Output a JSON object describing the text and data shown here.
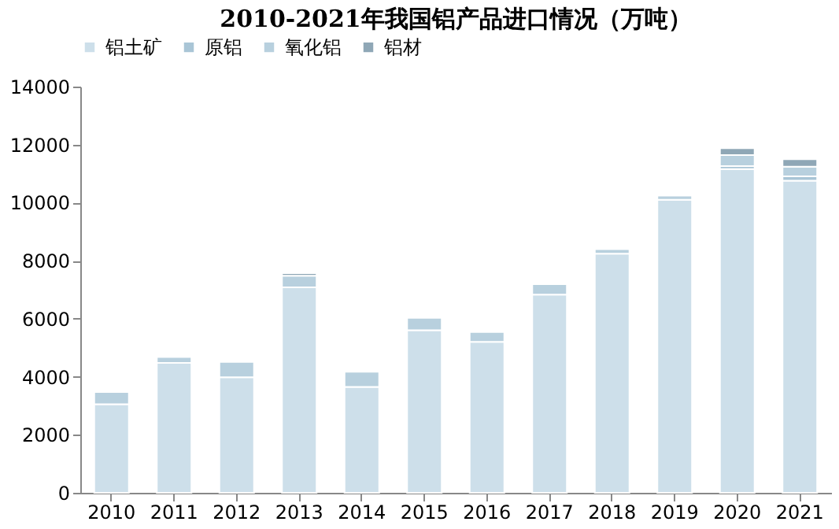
{
  "chart_data": {
    "type": "bar",
    "title": "2010-2021年我国铝产品进口情况（万吨）",
    "stacked": true,
    "categories": [
      "2010",
      "2011",
      "2012",
      "2013",
      "2014",
      "2015",
      "2016",
      "2017",
      "2018",
      "2019",
      "2020",
      "2021"
    ],
    "series": [
      {
        "name": "铝土矿",
        "color": "#cddfea",
        "values": [
          3050,
          4480,
          3980,
          7080,
          3650,
          5600,
          5200,
          6830,
          8240,
          10100,
          11160,
          10760
        ]
      },
      {
        "name": "原铝",
        "color": "#a9c5d6",
        "values": [
          null,
          null,
          null,
          null,
          null,
          null,
          null,
          null,
          null,
          null,
          100,
          150
        ]
      },
      {
        "name": "氧化铝",
        "color": "#b8d0de",
        "values": [
          420,
          200,
          530,
          400,
          520,
          430,
          340,
          360,
          160,
          140,
          380,
          330
        ]
      },
      {
        "name": "铝材",
        "color": "#8fa7b6",
        "values": [
          null,
          null,
          null,
          90,
          null,
          null,
          null,
          null,
          null,
          null,
          240,
          260
        ]
      }
    ],
    "ylim": [
      0,
      14000
    ],
    "yticks": [
      0,
      2000,
      4000,
      6000,
      8000,
      10000,
      12000,
      14000
    ],
    "grid": false,
    "legend": "top"
  }
}
